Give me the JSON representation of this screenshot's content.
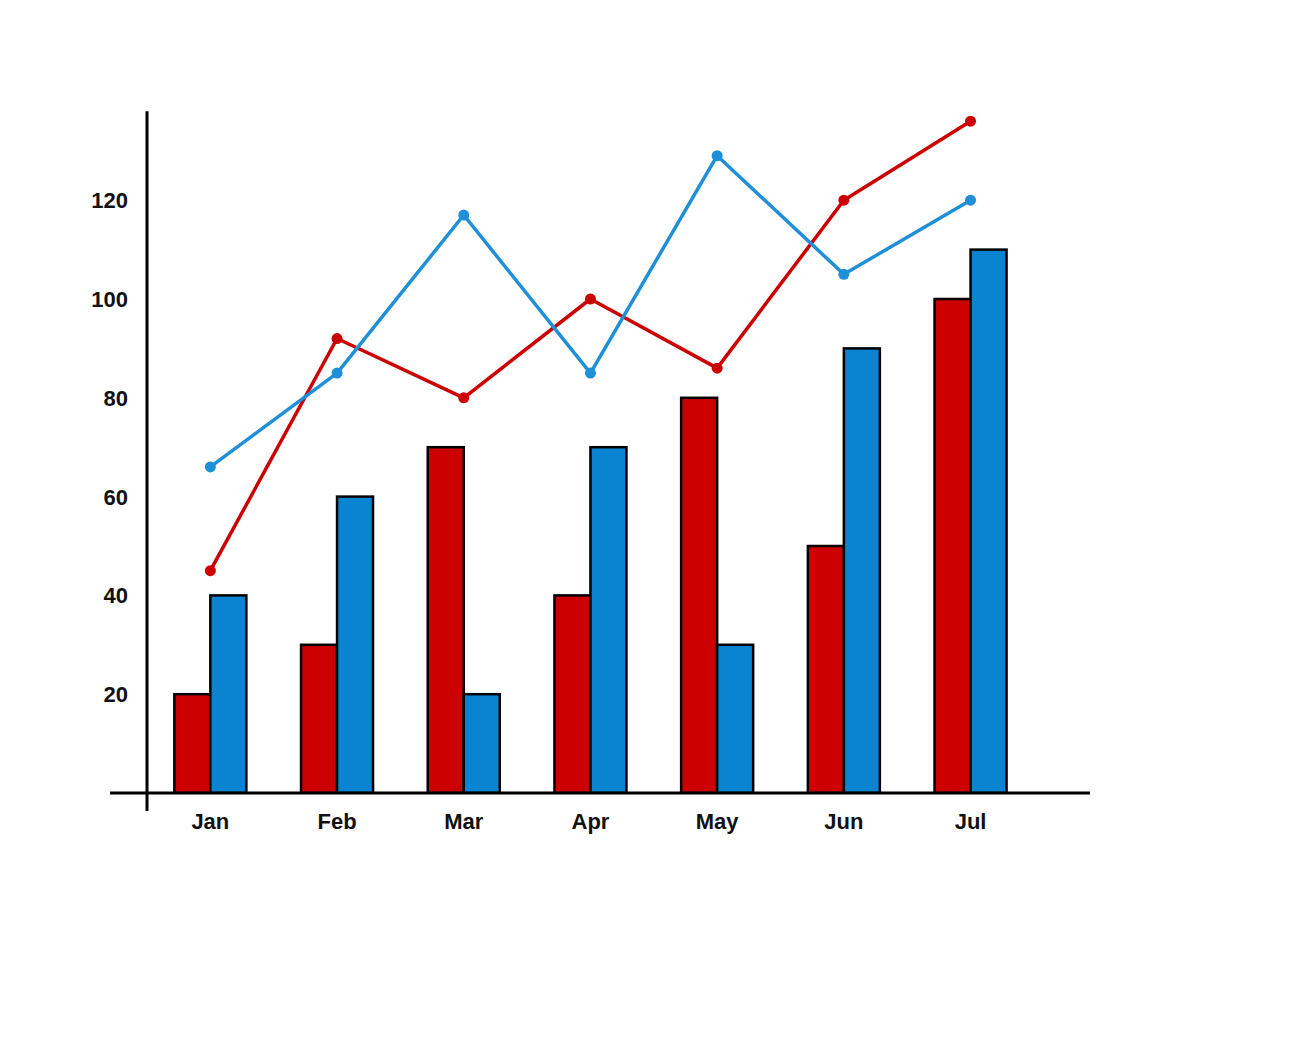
{
  "chart_data": {
    "type": "bar",
    "categories": [
      "Jan",
      "Feb",
      "Mar",
      "Apr",
      "May",
      "Jun",
      "Jul"
    ],
    "series": [
      {
        "type": "bar",
        "color": "#cc0000",
        "values": [
          20,
          30,
          70,
          40,
          80,
          50,
          100
        ]
      },
      {
        "type": "bar",
        "color": "#0a84d0",
        "values": [
          40,
          60,
          20,
          70,
          30,
          90,
          110
        ]
      },
      {
        "type": "line",
        "color": "#cc0000",
        "marker": "circle",
        "values": [
          45,
          92,
          80,
          100,
          86,
          120,
          136
        ]
      },
      {
        "type": "line",
        "color": "#1f8fd8",
        "marker": "circle",
        "values": [
          66,
          85,
          117,
          85,
          129,
          105,
          120
        ]
      }
    ],
    "ylim": [
      0,
      138
    ],
    "yticks": [
      20,
      40,
      60,
      80,
      100,
      120
    ],
    "grid": false
  }
}
